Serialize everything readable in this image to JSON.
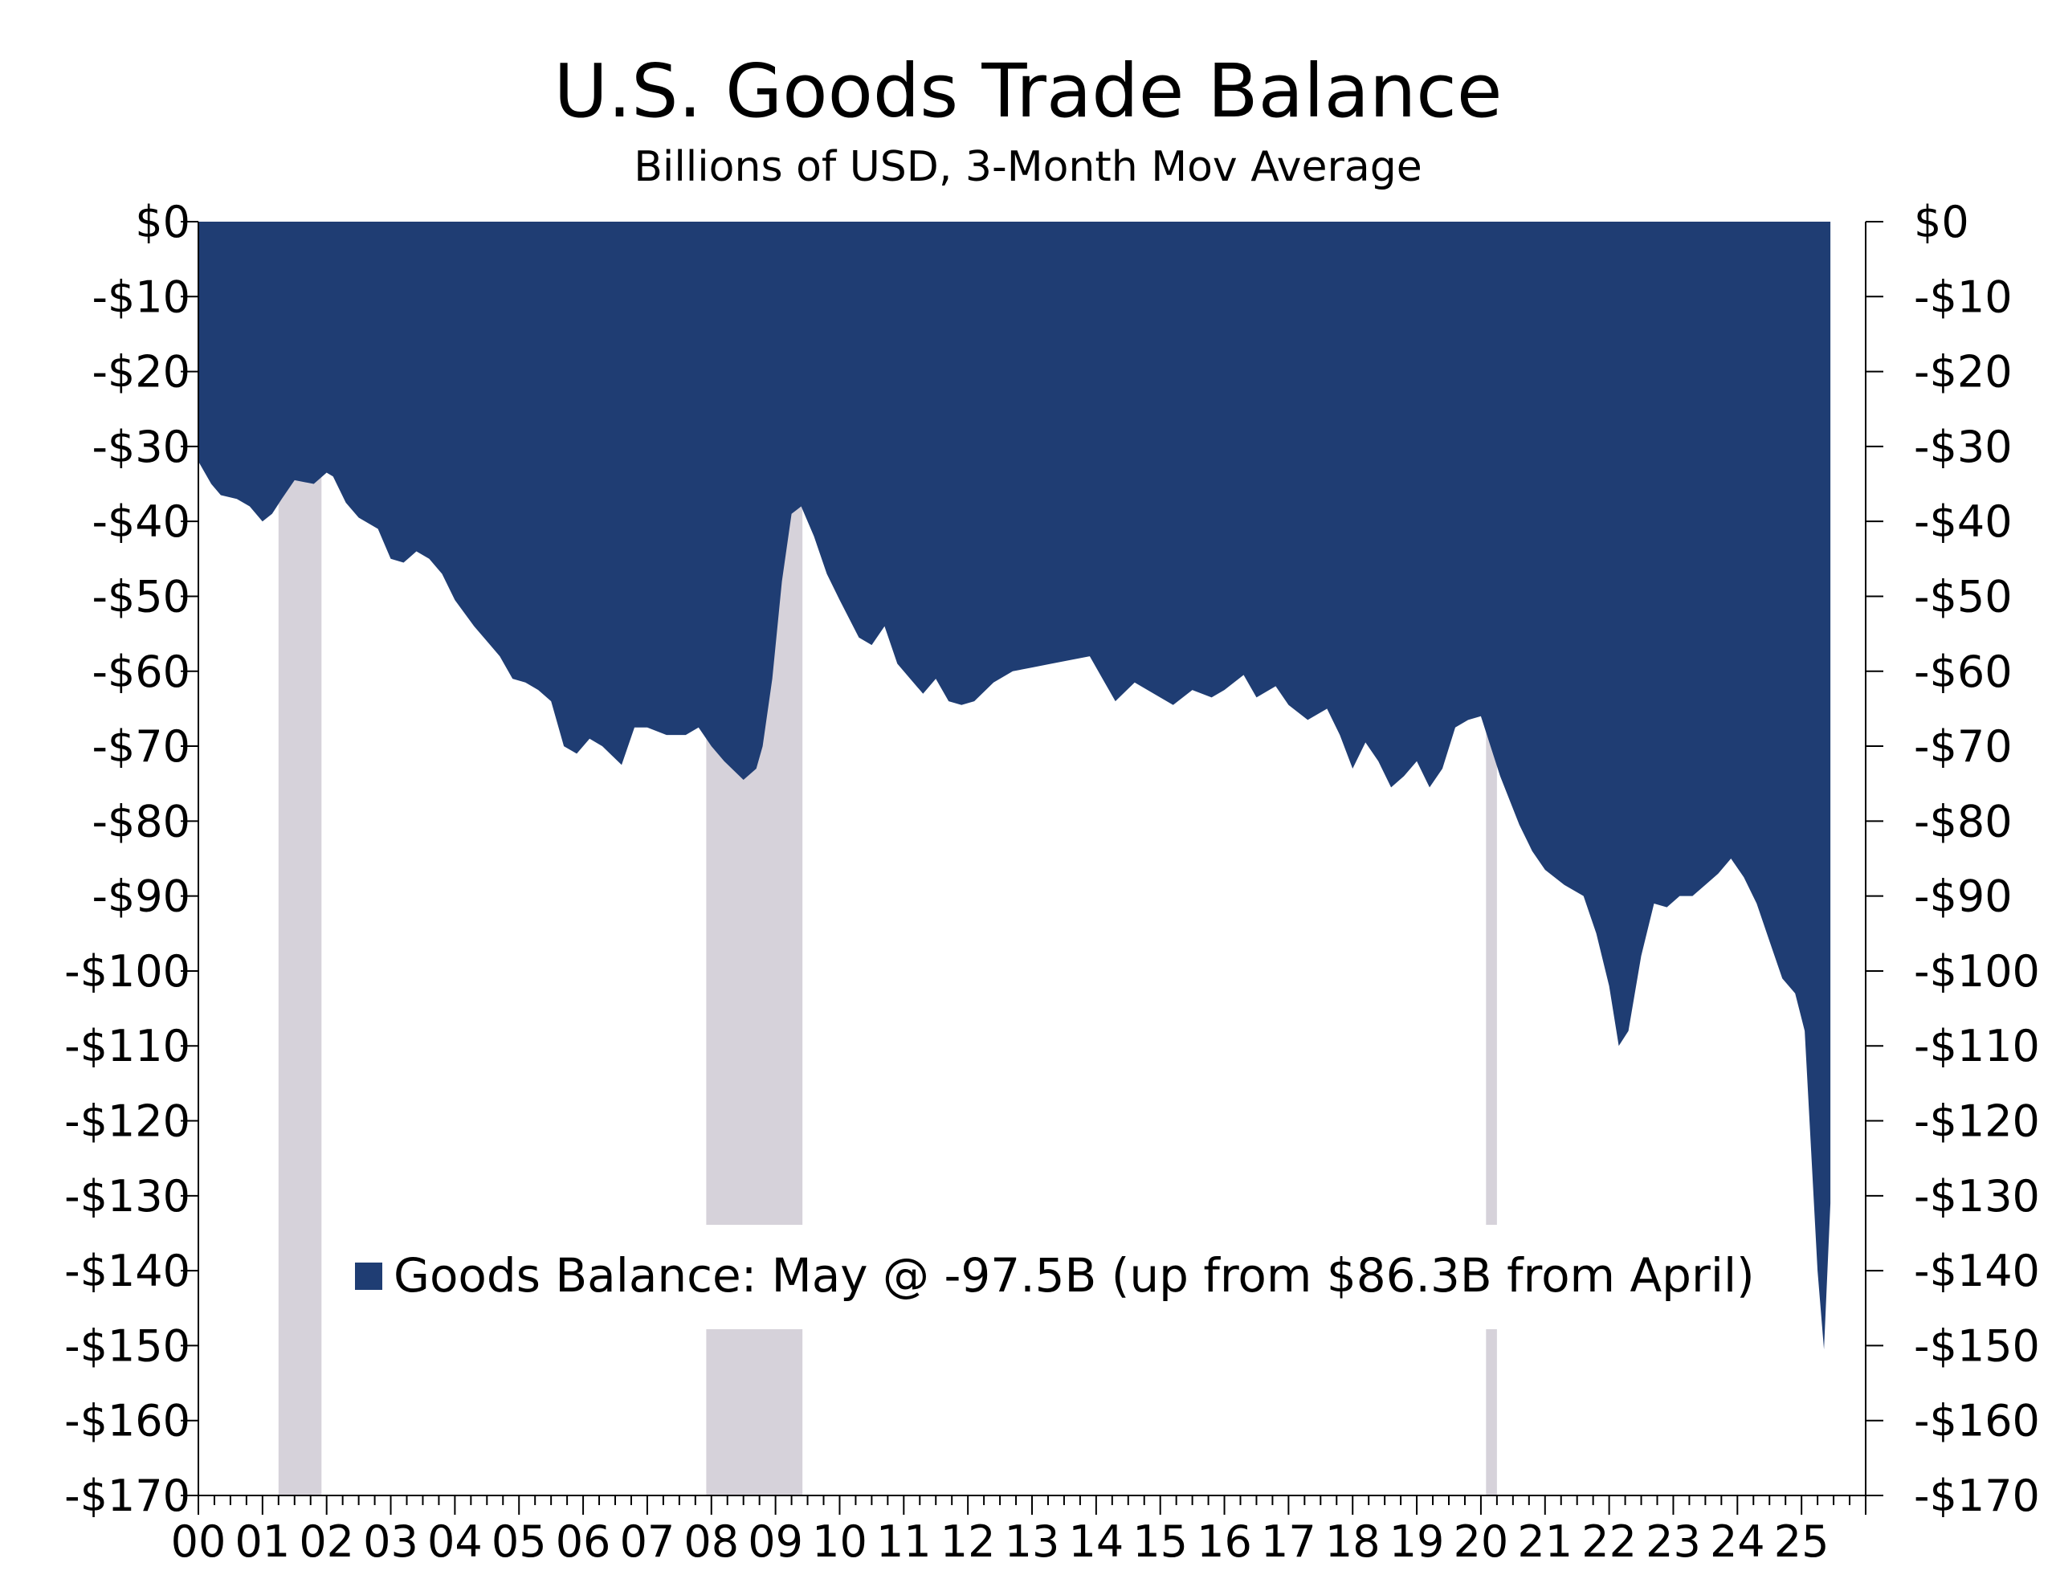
{
  "chart_data": {
    "type": "area",
    "title": "U.S. Goods Trade Balance",
    "subtitle": "Billions of USD, 3-Month Mov Average",
    "ylim": [
      -170,
      0
    ],
    "y_ticks": [
      "$0",
      "-$10",
      "-$20",
      "-$30",
      "-$40",
      "-$50",
      "-$60",
      "-$70",
      "-$80",
      "-$90",
      "-$100",
      "-$110",
      "-$120",
      "-$130",
      "-$140",
      "-$150",
      "-$160",
      "-$170"
    ],
    "x_tick_labels": [
      "00",
      "01",
      "02",
      "03",
      "04",
      "05",
      "06",
      "07",
      "08",
      "09",
      "10",
      "11",
      "12",
      "13",
      "14",
      "15",
      "16",
      "17",
      "18",
      "19",
      "20",
      "21",
      "22",
      "23",
      "24",
      "25"
    ],
    "xlim": [
      2000.0,
      2026.0
    ],
    "colors": {
      "area": "#1f3d73",
      "recession": "#d6d2da"
    },
    "recessions": [
      [
        2001.25,
        2001.92
      ],
      [
        2007.92,
        2009.42
      ],
      [
        2020.08,
        2020.25
      ]
    ],
    "series": [
      {
        "name": "Goods Balance: May @ -97.5B (up from $86.3B from April)",
        "points": [
          [
            2000.0,
            -32
          ],
          [
            2000.2,
            -35
          ],
          [
            2000.35,
            -36.5
          ],
          [
            2000.6,
            -37
          ],
          [
            2000.8,
            -38
          ],
          [
            2001.0,
            -40
          ],
          [
            2001.15,
            -39
          ],
          [
            2001.3,
            -37
          ],
          [
            2001.5,
            -34.5
          ],
          [
            2001.8,
            -35
          ],
          [
            2002.0,
            -33.5
          ],
          [
            2002.1,
            -34
          ],
          [
            2002.3,
            -37.5
          ],
          [
            2002.5,
            -39.5
          ],
          [
            2002.8,
            -41
          ],
          [
            2003.0,
            -45
          ],
          [
            2003.2,
            -45.5
          ],
          [
            2003.4,
            -44
          ],
          [
            2003.6,
            -45
          ],
          [
            2003.8,
            -47
          ],
          [
            2004.0,
            -50.5
          ],
          [
            2004.3,
            -54
          ],
          [
            2004.5,
            -56
          ],
          [
            2004.7,
            -58
          ],
          [
            2004.9,
            -61
          ],
          [
            2005.1,
            -61.5
          ],
          [
            2005.3,
            -62.5
          ],
          [
            2005.5,
            -64
          ],
          [
            2005.7,
            -70
          ],
          [
            2005.9,
            -71
          ],
          [
            2006.1,
            -69
          ],
          [
            2006.3,
            -70
          ],
          [
            2006.6,
            -72.5
          ],
          [
            2006.8,
            -67.5
          ],
          [
            2007.0,
            -67.5
          ],
          [
            2007.3,
            -68.5
          ],
          [
            2007.6,
            -68.5
          ],
          [
            2007.8,
            -67.5
          ],
          [
            2008.0,
            -70
          ],
          [
            2008.2,
            -72
          ],
          [
            2008.5,
            -74.5
          ],
          [
            2008.7,
            -73
          ],
          [
            2008.8,
            -70
          ],
          [
            2008.95,
            -61
          ],
          [
            2009.1,
            -48
          ],
          [
            2009.25,
            -39
          ],
          [
            2009.4,
            -38
          ],
          [
            2009.6,
            -42
          ],
          [
            2009.8,
            -47
          ],
          [
            2010.0,
            -50.5
          ],
          [
            2010.3,
            -55.5
          ],
          [
            2010.5,
            -56.5
          ],
          [
            2010.7,
            -54
          ],
          [
            2010.9,
            -59
          ],
          [
            2011.1,
            -61
          ],
          [
            2011.3,
            -63
          ],
          [
            2011.5,
            -61
          ],
          [
            2011.7,
            -64
          ],
          [
            2011.9,
            -64.5
          ],
          [
            2012.1,
            -64
          ],
          [
            2012.4,
            -61.5
          ],
          [
            2012.7,
            -60
          ],
          [
            2013.0,
            -59.5
          ],
          [
            2013.3,
            -59
          ],
          [
            2013.6,
            -58.5
          ],
          [
            2013.9,
            -58
          ],
          [
            2014.1,
            -61
          ],
          [
            2014.3,
            -64
          ],
          [
            2014.6,
            -61.5
          ],
          [
            2014.9,
            -63
          ],
          [
            2015.2,
            -64.5
          ],
          [
            2015.5,
            -62.5
          ],
          [
            2015.8,
            -63.5
          ],
          [
            2016.0,
            -62.5
          ],
          [
            2016.3,
            -60.5
          ],
          [
            2016.5,
            -63.5
          ],
          [
            2016.8,
            -62
          ],
          [
            2017.0,
            -64.5
          ],
          [
            2017.3,
            -66.5
          ],
          [
            2017.6,
            -65
          ],
          [
            2017.8,
            -68.5
          ],
          [
            2018.0,
            -73
          ],
          [
            2018.2,
            -69.5
          ],
          [
            2018.4,
            -72
          ],
          [
            2018.6,
            -75.5
          ],
          [
            2018.8,
            -74
          ],
          [
            2019.0,
            -72
          ],
          [
            2019.2,
            -75.5
          ],
          [
            2019.4,
            -73
          ],
          [
            2019.6,
            -67.5
          ],
          [
            2019.8,
            -66.5
          ],
          [
            2020.0,
            -66
          ],
          [
            2020.15,
            -70
          ],
          [
            2020.3,
            -74
          ],
          [
            2020.6,
            -80.5
          ],
          [
            2020.8,
            -84
          ],
          [
            2021.0,
            -86.5
          ],
          [
            2021.3,
            -88.5
          ],
          [
            2021.6,
            -90
          ],
          [
            2021.8,
            -95
          ],
          [
            2022.0,
            -102
          ],
          [
            2022.15,
            -110
          ],
          [
            2022.3,
            -108
          ],
          [
            2022.5,
            -98
          ],
          [
            2022.7,
            -91
          ],
          [
            2022.9,
            -91.5
          ],
          [
            2023.1,
            -90
          ],
          [
            2023.3,
            -90
          ],
          [
            2023.5,
            -88.5
          ],
          [
            2023.7,
            -87
          ],
          [
            2023.9,
            -85
          ],
          [
            2024.1,
            -87.5
          ],
          [
            2024.3,
            -91
          ],
          [
            2024.5,
            -96
          ],
          [
            2024.7,
            -101
          ],
          [
            2024.9,
            -103
          ],
          [
            2025.05,
            -108
          ],
          [
            2025.15,
            -124
          ],
          [
            2025.25,
            -140
          ],
          [
            2025.35,
            -150.5
          ],
          [
            2025.45,
            -131
          ]
        ]
      }
    ],
    "legend": {
      "placement": "bottom-center",
      "label": "Goods Balance: May @ -97.5B (up from $86.3B from April)"
    },
    "secondary_y_axis": true,
    "grid": false
  }
}
